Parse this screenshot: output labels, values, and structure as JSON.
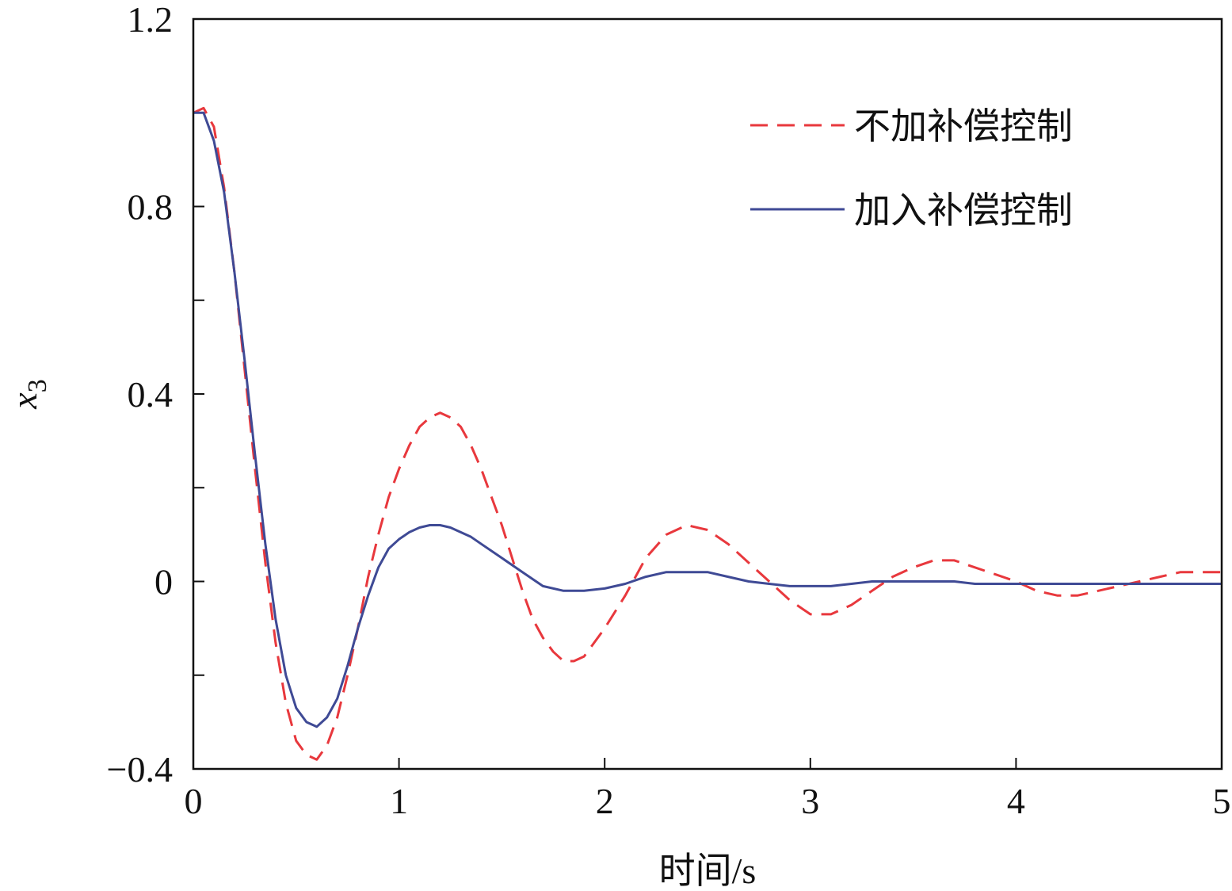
{
  "chart_data": {
    "type": "line",
    "title": "",
    "xlabel": "时间/s",
    "ylabel": "x",
    "ylabel_subscript": "3",
    "xlim": [
      0,
      5
    ],
    "ylim": [
      -0.4,
      1.2
    ],
    "xticks": [
      0,
      1,
      2,
      3,
      4,
      5
    ],
    "xtick_labels": [
      "0",
      "1",
      "2",
      "3",
      "4",
      "5"
    ],
    "yticks": [
      -0.4,
      -0.2,
      0,
      0.2,
      0.4,
      0.6,
      0.8,
      1.0,
      1.2
    ],
    "ytick_labels": [
      "−0.4",
      "",
      "0",
      "",
      "0.4",
      "",
      "0.8",
      "",
      "1.2"
    ],
    "grid": false,
    "legend_position": "top-right",
    "series": [
      {
        "name": "不加补偿控制",
        "color": "#e8383d",
        "style": "dashed",
        "x": [
          0,
          0.05,
          0.1,
          0.15,
          0.2,
          0.25,
          0.3,
          0.35,
          0.4,
          0.45,
          0.5,
          0.55,
          0.6,
          0.65,
          0.7,
          0.75,
          0.8,
          0.85,
          0.9,
          0.95,
          1.0,
          1.05,
          1.1,
          1.15,
          1.2,
          1.25,
          1.3,
          1.35,
          1.4,
          1.45,
          1.5,
          1.55,
          1.6,
          1.65,
          1.7,
          1.75,
          1.8,
          1.85,
          1.9,
          1.95,
          2.0,
          2.1,
          2.2,
          2.3,
          2.4,
          2.5,
          2.6,
          2.7,
          2.8,
          2.9,
          3.0,
          3.1,
          3.2,
          3.3,
          3.4,
          3.5,
          3.6,
          3.7,
          3.8,
          3.9,
          4.0,
          4.1,
          4.2,
          4.3,
          4.4,
          4.5,
          4.6,
          4.7,
          4.8,
          4.9,
          5.0
        ],
        "values": [
          1.0,
          1.01,
          0.97,
          0.84,
          0.66,
          0.45,
          0.24,
          0.04,
          -0.13,
          -0.26,
          -0.34,
          -0.37,
          -0.38,
          -0.35,
          -0.29,
          -0.2,
          -0.1,
          0.01,
          0.1,
          0.18,
          0.24,
          0.29,
          0.33,
          0.35,
          0.36,
          0.35,
          0.33,
          0.29,
          0.24,
          0.18,
          0.12,
          0.05,
          -0.02,
          -0.08,
          -0.12,
          -0.15,
          -0.17,
          -0.17,
          -0.16,
          -0.13,
          -0.1,
          -0.03,
          0.05,
          0.1,
          0.12,
          0.11,
          0.08,
          0.04,
          0.0,
          -0.04,
          -0.07,
          -0.07,
          -0.05,
          -0.02,
          0.01,
          0.03,
          0.045,
          0.045,
          0.03,
          0.015,
          0.0,
          -0.02,
          -0.03,
          -0.03,
          -0.02,
          -0.01,
          0.0,
          0.01,
          0.02,
          0.02,
          0.02
        ]
      },
      {
        "name": "加入补偿控制",
        "color": "#3f4a95",
        "style": "solid",
        "x": [
          0,
          0.05,
          0.1,
          0.15,
          0.2,
          0.25,
          0.3,
          0.35,
          0.4,
          0.45,
          0.5,
          0.55,
          0.6,
          0.65,
          0.7,
          0.75,
          0.8,
          0.85,
          0.9,
          0.95,
          1.0,
          1.05,
          1.1,
          1.15,
          1.2,
          1.25,
          1.3,
          1.35,
          1.4,
          1.5,
          1.6,
          1.7,
          1.8,
          1.9,
          2.0,
          2.1,
          2.2,
          2.3,
          2.4,
          2.5,
          2.6,
          2.7,
          2.8,
          2.9,
          3.0,
          3.1,
          3.2,
          3.3,
          3.4,
          3.5,
          3.6,
          3.7,
          3.8,
          3.9,
          4.0,
          4.2,
          4.4,
          4.6,
          4.8,
          5.0
        ],
        "values": [
          1.0,
          1.0,
          0.94,
          0.83,
          0.66,
          0.47,
          0.27,
          0.08,
          -0.08,
          -0.2,
          -0.27,
          -0.3,
          -0.31,
          -0.29,
          -0.25,
          -0.18,
          -0.1,
          -0.03,
          0.03,
          0.07,
          0.09,
          0.105,
          0.115,
          0.12,
          0.12,
          0.115,
          0.105,
          0.095,
          0.08,
          0.05,
          0.02,
          -0.01,
          -0.02,
          -0.02,
          -0.015,
          -0.005,
          0.01,
          0.02,
          0.02,
          0.02,
          0.01,
          0.0,
          -0.005,
          -0.01,
          -0.01,
          -0.01,
          -0.005,
          0.0,
          0.0,
          0.0,
          0.0,
          0.0,
          -0.005,
          -0.005,
          -0.005,
          -0.005,
          -0.005,
          -0.005,
          -0.005,
          -0.005
        ]
      }
    ]
  }
}
